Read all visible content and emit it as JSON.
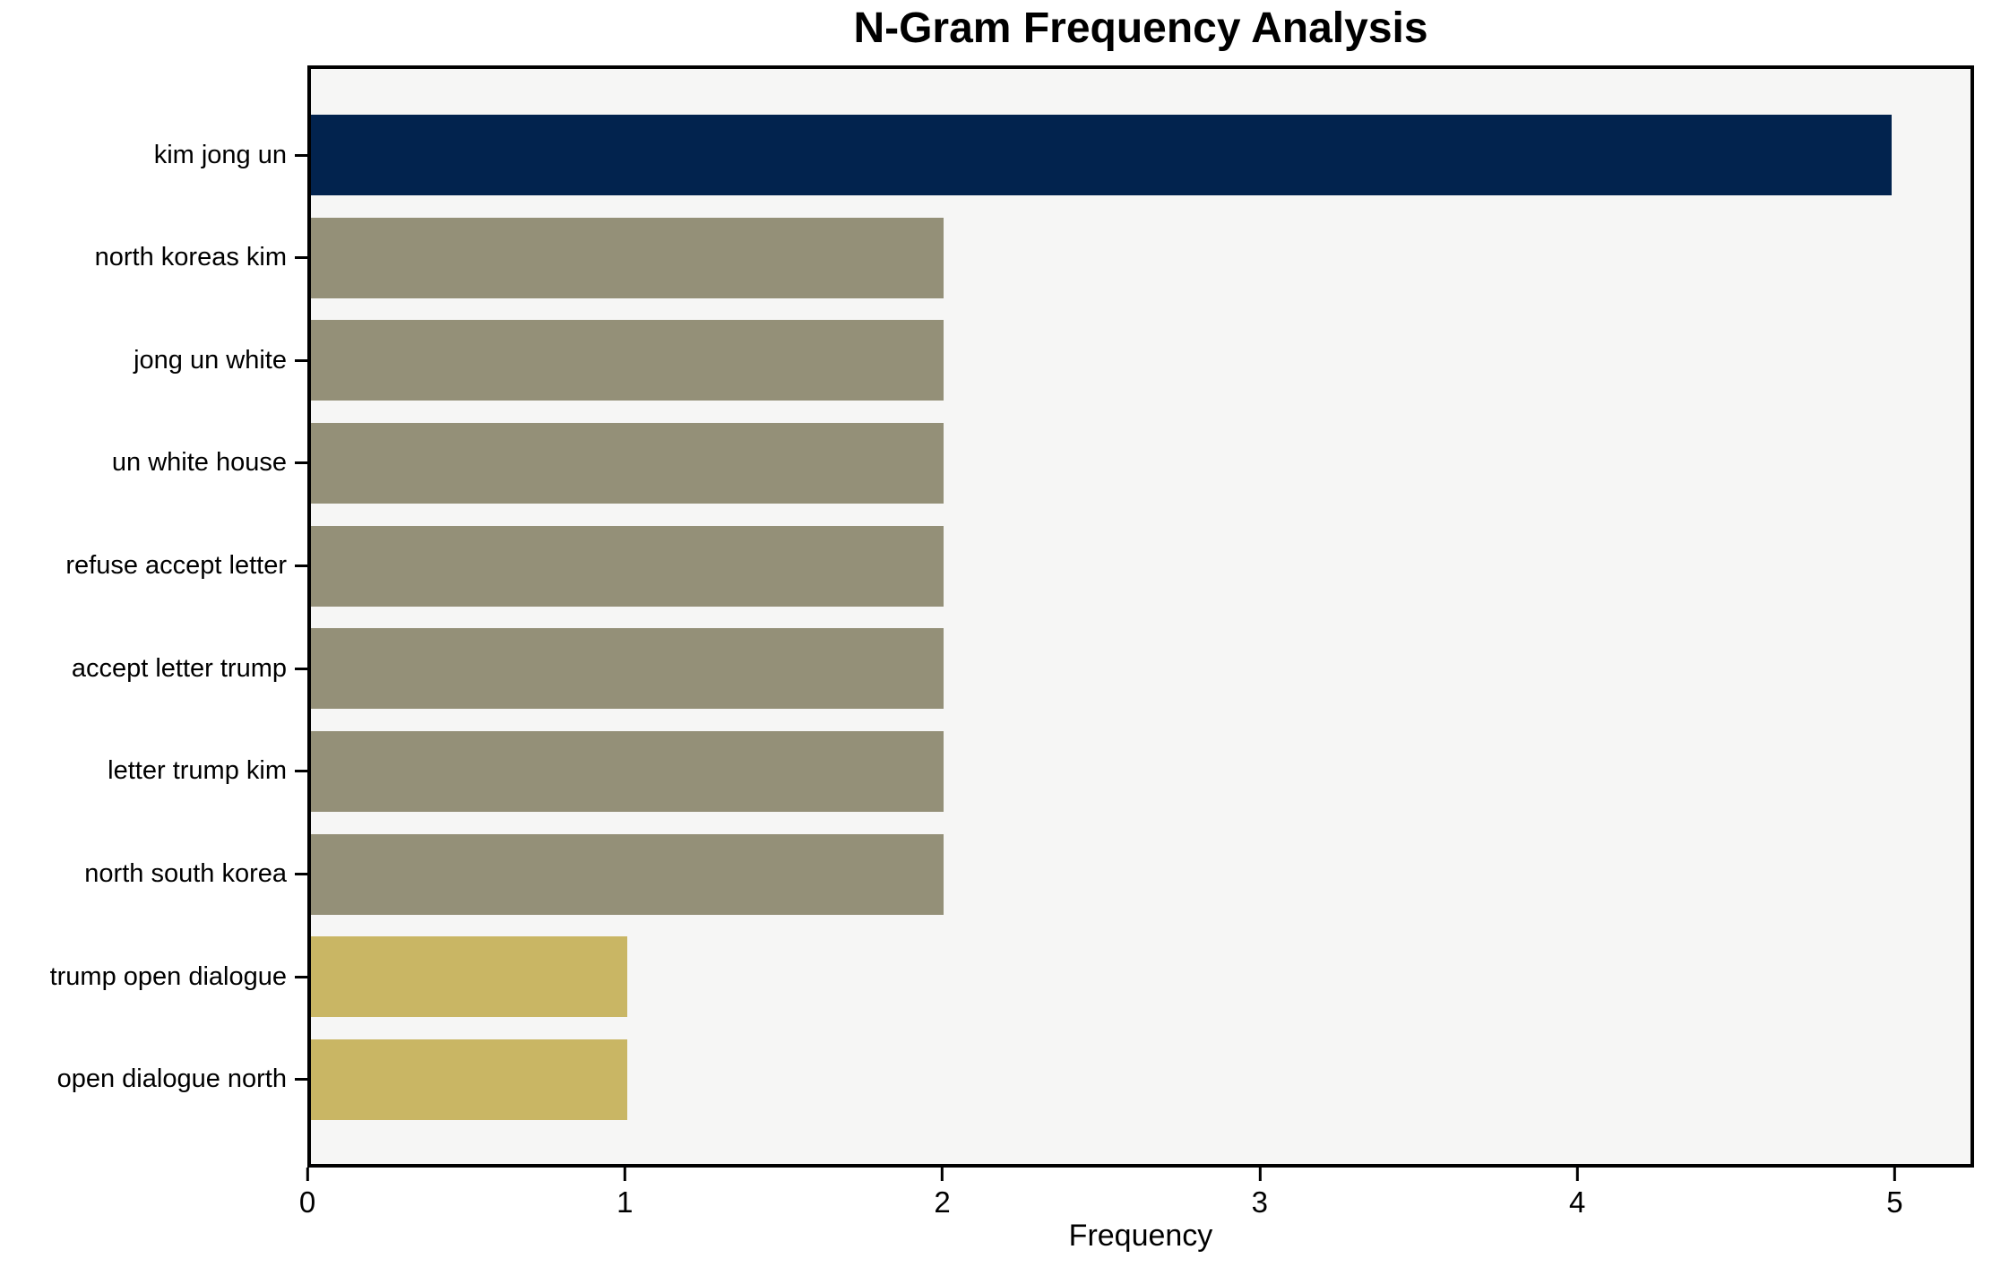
{
  "page": {
    "background_color": "#ffffff"
  },
  "chart_data": {
    "type": "bar",
    "orientation": "horizontal",
    "title": "N-Gram Frequency Analysis",
    "xlabel": "Frequency",
    "ylabel": "",
    "categories": [
      "kim jong un",
      "north koreas kim",
      "jong un white",
      "un white house",
      "refuse accept letter",
      "accept letter trump",
      "letter trump kim",
      "north south korea",
      "trump open dialogue",
      "open dialogue north"
    ],
    "values": [
      5,
      2,
      2,
      2,
      2,
      2,
      2,
      2,
      1,
      1
    ],
    "bar_colors": [
      "#02234e",
      "#949078",
      "#949078",
      "#949078",
      "#949078",
      "#949078",
      "#949078",
      "#949078",
      "#c9b664",
      "#c9b664"
    ],
    "xticks": [
      0,
      1,
      2,
      3,
      4,
      5
    ],
    "xlim": [
      0,
      5.25
    ],
    "grid": false,
    "legend_position": "none",
    "plot_background": "#f6f6f5",
    "axis_color": "#000000",
    "colors": {
      "navy": "#02234e",
      "olive": "#949078",
      "khaki": "#c9b664"
    }
  }
}
